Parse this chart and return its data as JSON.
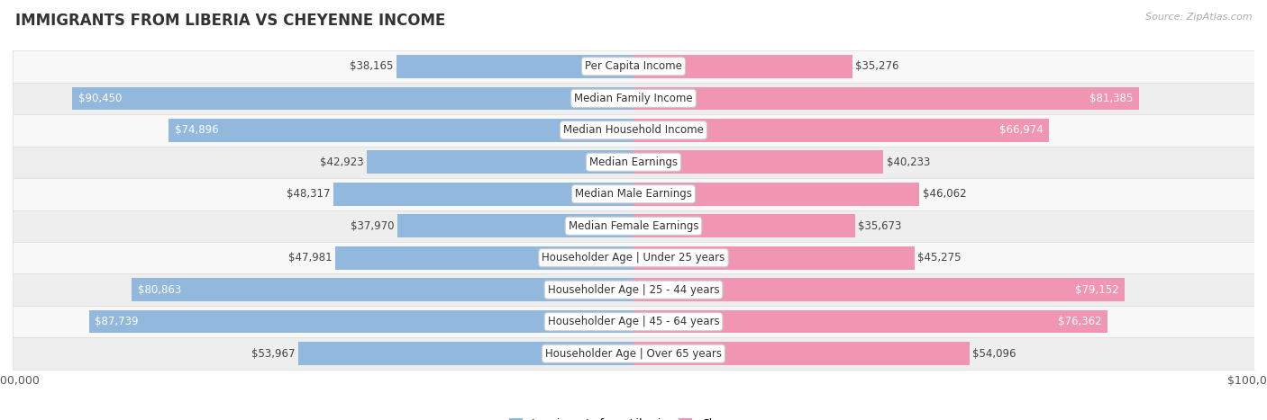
{
  "title": "IMMIGRANTS FROM LIBERIA VS CHEYENNE INCOME",
  "source": "Source: ZipAtlas.com",
  "categories": [
    "Per Capita Income",
    "Median Family Income",
    "Median Household Income",
    "Median Earnings",
    "Median Male Earnings",
    "Median Female Earnings",
    "Householder Age | Under 25 years",
    "Householder Age | 25 - 44 years",
    "Householder Age | 45 - 64 years",
    "Householder Age | Over 65 years"
  ],
  "liberia_values": [
    38165,
    90450,
    74896,
    42923,
    48317,
    37970,
    47981,
    80863,
    87739,
    53967
  ],
  "cheyenne_values": [
    35276,
    81385,
    66974,
    40233,
    46062,
    35673,
    45275,
    79152,
    76362,
    54096
  ],
  "liberia_color": "#93b8de",
  "cheyenne_color": "#f096b2",
  "max_value": 100000,
  "background_color": "#ffffff",
  "row_bg_light": "#eeeeee",
  "row_bg_white": "#f8f8f8",
  "label_font_size": 8.5,
  "title_font_size": 12,
  "legend_font_size": 9,
  "inside_label_threshold": 55000
}
